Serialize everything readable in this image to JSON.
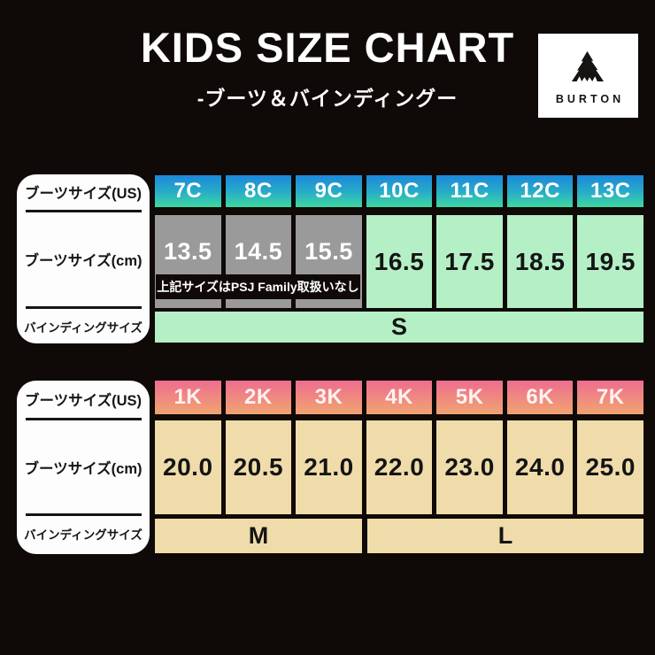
{
  "header": {
    "title": "KIDS SIZE CHART",
    "subtitle": "-ブーツ＆バインディングー",
    "brand": "BURTON"
  },
  "labels": {
    "boot_size_us": "ブーツサイズ(US)",
    "boot_size_cm": "ブーツサイズ(cm)",
    "binding_size": "バインディングサイズ"
  },
  "table1": {
    "us_sizes": [
      "7C",
      "8C",
      "9C",
      "10C",
      "11C",
      "12C",
      "13C"
    ],
    "cm_sizes": [
      "13.5",
      "14.5",
      "15.5",
      "16.5",
      "17.5",
      "18.5",
      "19.5"
    ],
    "unavailable_count": 3,
    "note": "上記サイズはPSJ Family取扱いなし",
    "binding": "S"
  },
  "table2": {
    "us_sizes": [
      "1K",
      "2K",
      "3K",
      "4K",
      "5K",
      "6K",
      "7K"
    ],
    "cm_sizes": [
      "20.0",
      "20.5",
      "21.0",
      "22.0",
      "23.0",
      "24.0",
      "25.0"
    ],
    "bindings": [
      {
        "label": "M",
        "span": 3
      },
      {
        "label": "L",
        "span": 4
      }
    ]
  },
  "colors": {
    "background": "#0f0907",
    "header_gradient_1_top": "#1d87da",
    "header_gradient_1_bottom": "#3ed8a0",
    "header_gradient_2_top": "#ee6d90",
    "header_gradient_2_bottom": "#f0a471",
    "cell_green": "#b5efc5",
    "cell_gray": "#9b9a9b",
    "cell_tan": "#f0dcaa",
    "label_white": "#fdfdfd",
    "text_dark": "#141414",
    "text_white": "#ffffff"
  }
}
